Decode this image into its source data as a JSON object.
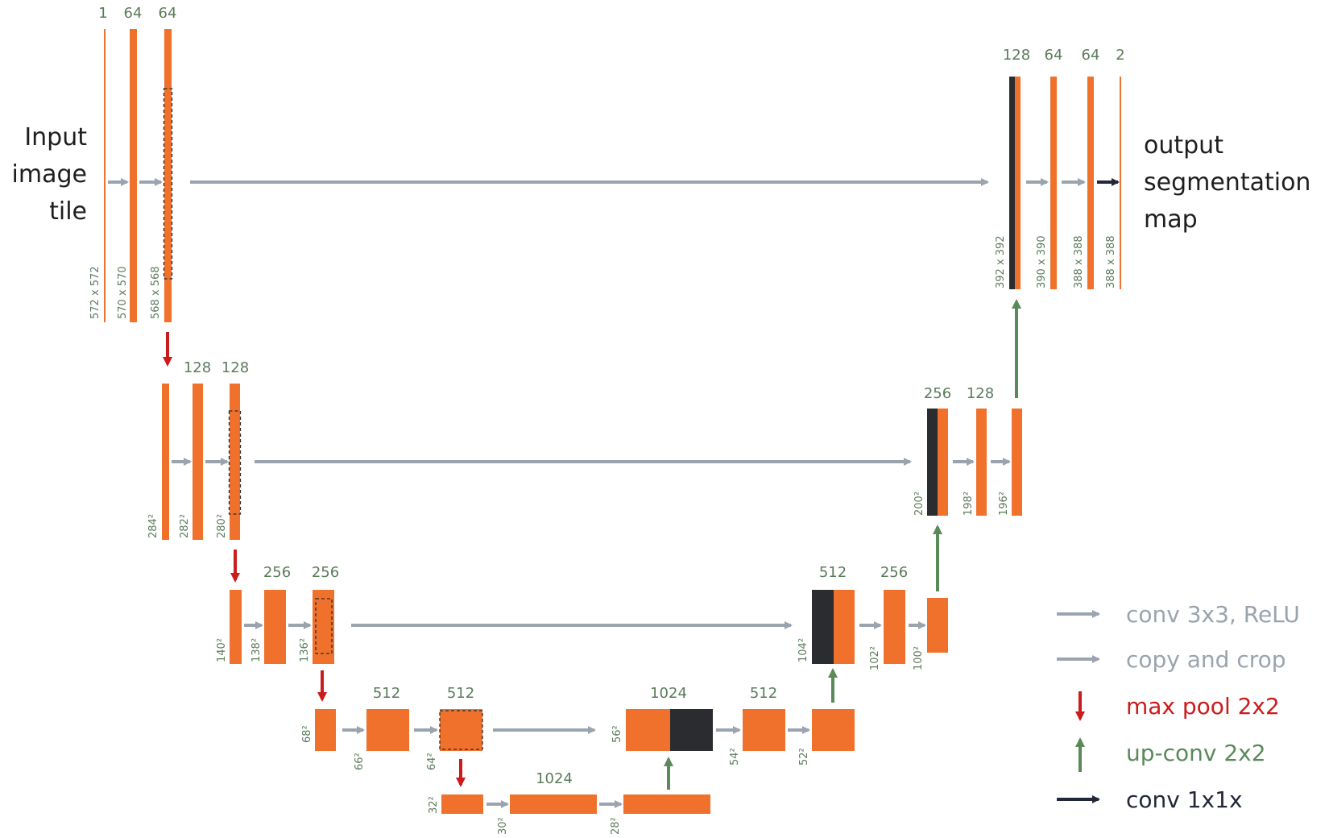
{
  "input_label": [
    "Input",
    "image",
    "tile"
  ],
  "output_label": [
    "output",
    "segmentation",
    "map"
  ],
  "legend": [
    {
      "label": "conv 3x3, ReLU",
      "color": "#9aa4ae",
      "arrow": "right"
    },
    {
      "label": "copy and crop",
      "color": "#9aa4ae",
      "arrow": "right"
    },
    {
      "label": "max pool 2x2",
      "color": "#cc1b1b",
      "arrow": "down"
    },
    {
      "label": "up-conv 2x2",
      "color": "#5a8a5a",
      "arrow": "up"
    },
    {
      "label": "conv 1x1x",
      "color": "#232838",
      "arrow": "right"
    }
  ],
  "colors": {
    "feature_map": "#f0712c",
    "copied_map": "#2a2c30",
    "conv_arrow": "#9aa4ae",
    "pool_arrow": "#cc1b1b",
    "upconv_arrow": "#5a8a5a",
    "final_arrow": "#232838",
    "text": "#5b7b5b"
  },
  "channels": {
    "enc1": [
      "1",
      "64",
      "64"
    ],
    "enc2": [
      "128",
      "128"
    ],
    "enc3": [
      "256",
      "256"
    ],
    "enc4": [
      "512",
      "512"
    ],
    "bottleneck": [
      "1024"
    ],
    "bottleneck_up": [
      "1024"
    ],
    "dec4": [
      "512"
    ],
    "dec3": [
      "512",
      "256"
    ],
    "dec2": [
      "256",
      "128"
    ],
    "dec1": [
      "128",
      "64",
      "64",
      "2"
    ]
  },
  "sizes": {
    "enc1": [
      "572 x 572",
      "570 x 570",
      "568 x 568"
    ],
    "enc2": [
      "284²",
      "282²",
      "280²"
    ],
    "enc3": [
      "140²",
      "138²",
      "136²"
    ],
    "enc4": [
      "68²",
      "66²",
      "64²"
    ],
    "bottleneck": [
      "32²",
      "30²",
      "28²"
    ],
    "dec4": [
      "56²",
      "54²",
      "52²"
    ],
    "dec3": [
      "104²",
      "102²",
      "100²"
    ],
    "dec2": [
      "200²",
      "198²",
      "196²"
    ],
    "dec1": [
      "392 x 392",
      "390 x 390",
      "388 x 388",
      "388 x 388"
    ]
  }
}
